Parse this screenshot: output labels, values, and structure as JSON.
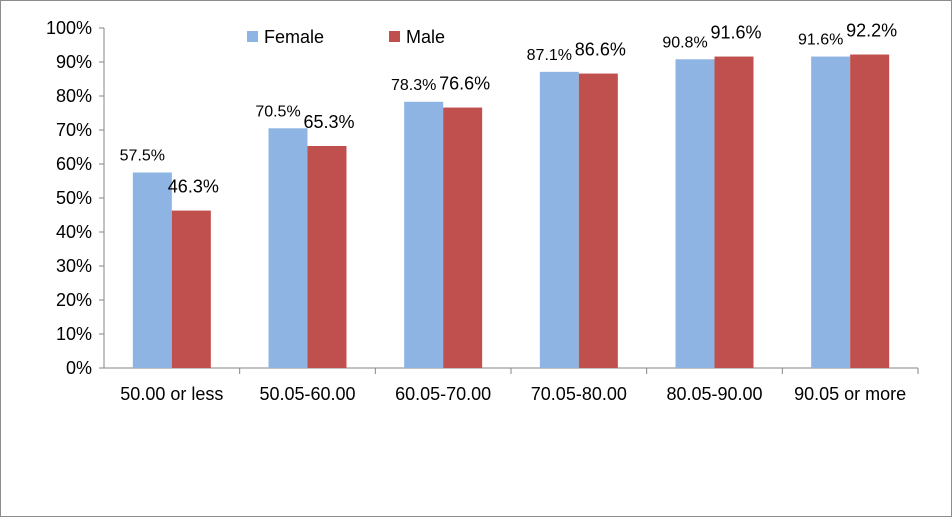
{
  "chart_data": {
    "type": "bar",
    "categories": [
      "50.00 or less",
      "50.05-60.00",
      "60.05-70.00",
      "70.05-80.00",
      "80.05-90.00",
      "90.05 or more"
    ],
    "series": [
      {
        "name": "Female",
        "color": "#8eb4e3",
        "values": [
          57.5,
          70.5,
          78.3,
          87.1,
          90.8,
          91.6
        ],
        "labels": [
          "57.5%",
          "70.5%",
          "78.3%",
          "87.1%",
          "90.8%",
          "91.6%"
        ]
      },
      {
        "name": "Male",
        "color": "#c0504d",
        "values": [
          46.3,
          65.3,
          76.6,
          86.6,
          91.6,
          92.2
        ],
        "labels": [
          "46.3%",
          "65.3%",
          "76.6%",
          "86.6%",
          "91.6%",
          "92.2%"
        ]
      }
    ],
    "y_ticks": [
      "0%",
      "10%",
      "20%",
      "30%",
      "40%",
      "50%",
      "60%",
      "70%",
      "80%",
      "90%",
      "100%"
    ],
    "ylim": [
      0,
      100
    ],
    "grid": false,
    "legend_position": "top-center"
  }
}
